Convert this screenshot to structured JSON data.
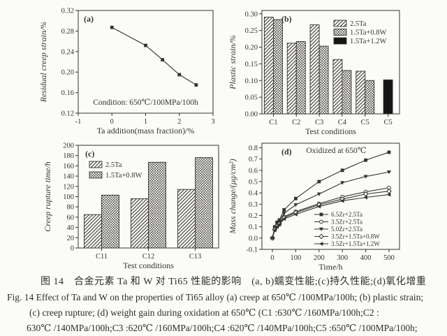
{
  "colors": {
    "ink": "#333333",
    "bar_solid": "#151515",
    "paper": "#fbfbf8"
  },
  "caption": {
    "line_cn": "图 14　合金元素 Ta 和 W 对 Ti65 性能的影响　(a, b)蠕变性能;(c)持久性能;(d)氧化增重",
    "line_en_1": "Fig. 14   Effect of Ta and W on the properties of Ti65 alloy   (a) creep at 650℃ /100MPa/100h; (b) plastic strain;",
    "line_en_2": "(c)  creep rupture;  (d)  weight gain during oxidation at 650℃ (C1 :630℃ /160MPa/100h;C2 :",
    "line_en_3": "630℃ /140MPa/100h;C3 :620℃ /160MPa/100h;C4 :620℃ /140MPa/100h;C5 :650℃ /100MPa/100h;"
  },
  "chart_data": [
    {
      "id": "a",
      "type": "line",
      "panel_label": "(a)",
      "title": "",
      "xlabel": "Ta addition(mass fraction)/%",
      "ylabel": "Residual creep strain/%",
      "annotation": "Condition: 650℃/100MPa/100h",
      "xlim": [
        -1,
        3
      ],
      "ylim": [
        0.12,
        0.32
      ],
      "xticks": [
        "-1",
        "0",
        "1",
        "2",
        "3"
      ],
      "yticks": [
        "0.12",
        "0.16",
        "0.20",
        "0.24",
        "0.28",
        "0.32"
      ],
      "grid": false,
      "series": [
        {
          "name": "residual creep strain",
          "marker": "square",
          "x": [
            0,
            1,
            1.5,
            2,
            2.5
          ],
          "y": [
            0.287,
            0.252,
            0.224,
            0.195,
            0.175
          ]
        }
      ]
    },
    {
      "id": "b",
      "type": "bar",
      "panel_label": "(b)",
      "title": "",
      "xlabel": "Test conditions",
      "ylabel": "Plastic strain/%",
      "categories": [
        "C1",
        "C2",
        "C3",
        "C4",
        "C5",
        "C5"
      ],
      "ylim": [
        0,
        0.31
      ],
      "yticks": [
        "0.00",
        "0.05",
        "0.10",
        "0.15",
        "0.20",
        "0.25",
        "0.30"
      ],
      "grid": false,
      "legend_position": "upper-right",
      "series": [
        {
          "name": "2.5Ta",
          "pattern": "diagonal",
          "values": [
            0.29,
            0.212,
            0.267,
            0.163,
            0.128,
            null
          ]
        },
        {
          "name": "1.5Ta+0.8W",
          "pattern": "dots",
          "values": [
            0.283,
            0.217,
            0.203,
            0.13,
            0.1,
            null
          ]
        },
        {
          "name": "1.5Ta+1.2W",
          "pattern": "solid",
          "values": [
            null,
            null,
            null,
            null,
            null,
            0.102
          ]
        }
      ]
    },
    {
      "id": "c",
      "type": "bar",
      "panel_label": "(c)",
      "title": "",
      "xlabel": "Test conditions",
      "ylabel": "Creep rupture time/h",
      "categories": [
        "C11",
        "C12",
        "C13"
      ],
      "ylim": [
        0,
        200
      ],
      "yticks": [
        "0",
        "20",
        "40",
        "60",
        "80",
        "100",
        "120",
        "140",
        "160",
        "180",
        "200"
      ],
      "grid": false,
      "legend_position": "upper-left",
      "series": [
        {
          "name": "2.5Ta",
          "pattern": "diagonal",
          "values": [
            65,
            96,
            114
          ]
        },
        {
          "name": "1.5Ta+0.8W",
          "pattern": "dots",
          "values": [
            103,
            167,
            176
          ]
        }
      ]
    },
    {
      "id": "d",
      "type": "line",
      "panel_label": "(d)",
      "title": "",
      "xlabel": "Time/h",
      "ylabel": "Mass change/(μg/cm²)",
      "annotation": "Oxidized at 650℃",
      "xlim": [
        -45,
        545
      ],
      "ylim": [
        -0.1,
        0.84
      ],
      "xticks": [
        "0",
        "100",
        "200",
        "300",
        "400",
        "500"
      ],
      "yticks": [
        "-0.1",
        "0.0",
        "0.1",
        "0.2",
        "0.3",
        "0.4",
        "0.5",
        "0.6",
        "0.7",
        "0.8"
      ],
      "grid": false,
      "legend_position": "lower-right",
      "series": [
        {
          "name": "6.5Zr+2.5Ta",
          "marker": "square",
          "x": [
            0,
            10,
            20,
            30,
            50,
            100,
            200,
            300,
            400,
            500
          ],
          "y": [
            0,
            0.1,
            0.14,
            0.16,
            0.25,
            0.35,
            0.5,
            0.6,
            0.69,
            0.76
          ]
        },
        {
          "name": "3.5Zr+2.5Ta",
          "marker": "circle-open",
          "x": [
            0,
            10,
            20,
            30,
            50,
            100,
            200,
            300,
            400,
            500
          ],
          "y": [
            0,
            0.08,
            0.11,
            0.13,
            0.19,
            0.235,
            0.305,
            0.365,
            0.41,
            0.445
          ]
        },
        {
          "name": "5.0Zr+2.5Ta",
          "marker": "triangle-down",
          "x": [
            0,
            10,
            20,
            30,
            50,
            100,
            200,
            300,
            400,
            500
          ],
          "y": [
            0,
            0.09,
            0.125,
            0.15,
            0.22,
            0.295,
            0.39,
            0.49,
            0.545,
            0.585
          ]
        },
        {
          "name": "3.5Zr+1.5Ta+0.8W",
          "marker": "diamond-open",
          "x": [
            0,
            10,
            20,
            30,
            50,
            100,
            200,
            300,
            400,
            500
          ],
          "y": [
            0,
            0.075,
            0.105,
            0.125,
            0.18,
            0.225,
            0.295,
            0.345,
            0.39,
            0.415
          ]
        },
        {
          "name": "3.5Zr+1.5Ta+1.2W",
          "marker": "triangle-left",
          "x": [
            0,
            10,
            20,
            30,
            50,
            100,
            200,
            300,
            400,
            500
          ],
          "y": [
            0,
            0.07,
            0.1,
            0.12,
            0.17,
            0.21,
            0.28,
            0.33,
            0.36,
            0.385
          ]
        }
      ]
    }
  ]
}
